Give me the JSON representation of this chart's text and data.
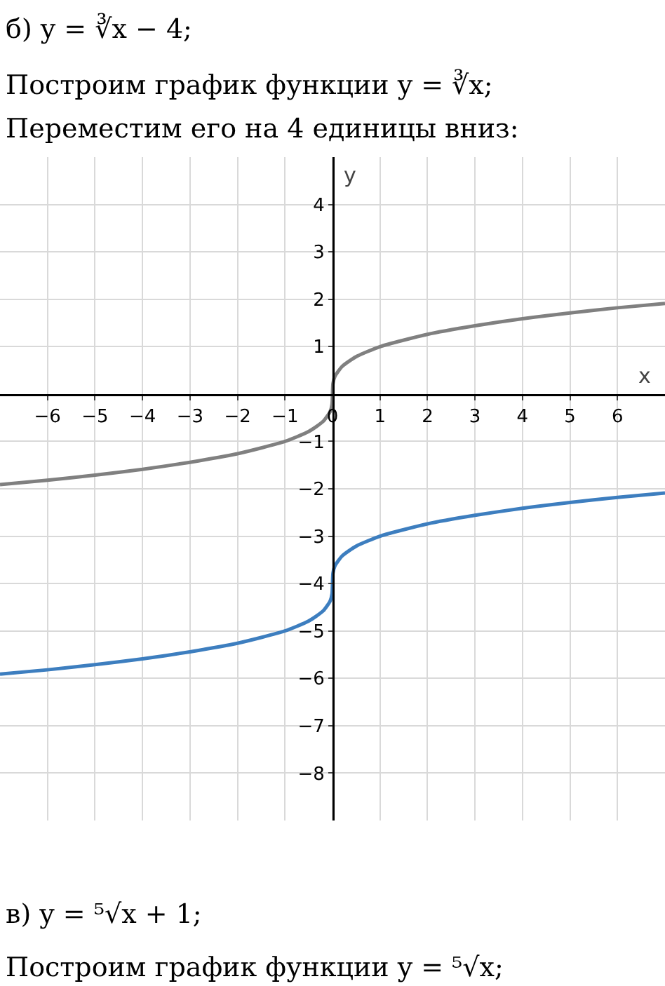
{
  "chart_data": {
    "type": "line",
    "title": "б) y = ∛x − 4;",
    "subtitle": "Построим график функции y = ∛x;",
    "annotations": [
      "Переместим его на 4 единицы вниз:",
      "в) y = ⁵√x + 1;",
      "Построим график функции y = ⁵√x;"
    ],
    "xlabel": "x",
    "ylabel": "y",
    "x": [
      -7,
      -6,
      -5,
      -4,
      -3,
      -2,
      -1,
      -0.5,
      -0.2,
      -0.05,
      -0.01,
      0,
      0.01,
      0.05,
      0.2,
      0.5,
      1,
      2,
      3,
      4,
      5,
      6,
      7
    ],
    "series": [
      {
        "color": "#808080",
        "values": [
          -1.91,
          -1.82,
          -1.71,
          -1.59,
          -1.44,
          -1.26,
          -1,
          -0.79,
          -0.58,
          -0.37,
          -0.22,
          0,
          0.22,
          0.37,
          0.58,
          0.79,
          1,
          1.26,
          1.44,
          1.59,
          1.71,
          1.82,
          1.91
        ]
      },
      {
        "color": "#3d7ebf",
        "values": [
          -5.91,
          -5.82,
          -5.71,
          -5.59,
          -5.44,
          -5.26,
          -5,
          -4.79,
          -4.58,
          -4.37,
          -4.22,
          -4,
          -3.78,
          -3.63,
          -3.42,
          -3.21,
          -3,
          -2.74,
          -2.56,
          -2.41,
          -2.29,
          -2.18,
          -2.09
        ]
      }
    ],
    "xlim": [
      -7,
      7
    ],
    "ylim": [
      -9,
      5
    ],
    "xticks": [
      -6,
      -5,
      -4,
      -3,
      -2,
      -1,
      0,
      1,
      2,
      3,
      4,
      5,
      6
    ],
    "yticks": [
      -8,
      -7,
      -6,
      -5,
      -4,
      -3,
      -2,
      -1,
      1,
      2,
      3,
      4
    ],
    "grid": true,
    "marker": "none",
    "line_style": "solid"
  }
}
